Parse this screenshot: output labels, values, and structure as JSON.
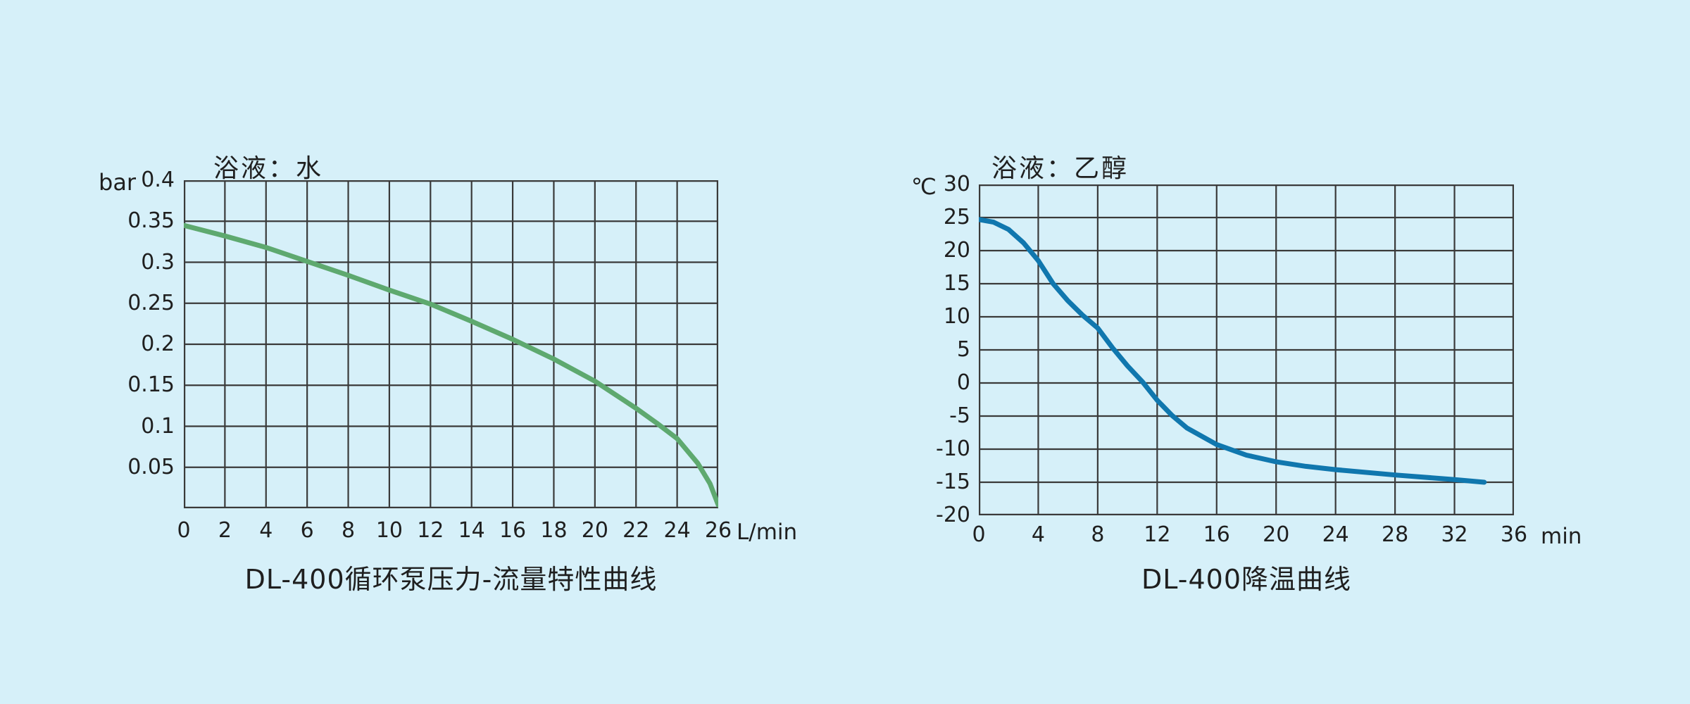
{
  "colors": {
    "background": "#d6f0f9",
    "grid": "#3a3a3a",
    "text": "#1f1f1f"
  },
  "chart_data": [
    {
      "type": "line",
      "bath_label": "浴液：水",
      "title": "DL-400循环泵压力-流量特性曲线",
      "y_unit": "bar",
      "x_unit": "L/min",
      "x_ticks": [
        "0",
        "2",
        "4",
        "6",
        "8",
        "10",
        "12",
        "14",
        "16",
        "18",
        "20",
        "22",
        "24",
        "26"
      ],
      "y_ticks": [
        "0.4",
        "0.35",
        "0.3",
        "0.25",
        "0.2",
        "0.15",
        "0.1",
        "0.05"
      ],
      "x_range": [
        0,
        26
      ],
      "y_range": [
        0,
        0.4
      ],
      "grid": {
        "cols": 13,
        "rows": 8,
        "x_step": 2,
        "y_step": 0.05
      },
      "legend": "none",
      "line_color": "#5ea96f",
      "points": [
        [
          0,
          0.345
        ],
        [
          2,
          0.332
        ],
        [
          4,
          0.318
        ],
        [
          6,
          0.301
        ],
        [
          8,
          0.284
        ],
        [
          10,
          0.266
        ],
        [
          12,
          0.249
        ],
        [
          14,
          0.228
        ],
        [
          16,
          0.206
        ],
        [
          18,
          0.182
        ],
        [
          20,
          0.155
        ],
        [
          22,
          0.122
        ],
        [
          23,
          0.104
        ],
        [
          24,
          0.085
        ],
        [
          25,
          0.055
        ],
        [
          25.6,
          0.03
        ],
        [
          26,
          0.004
        ]
      ]
    },
    {
      "type": "line",
      "bath_label": "浴液：乙醇",
      "title": "DL-400降温曲线",
      "y_unit": "℃",
      "x_unit": "min",
      "x_ticks": [
        "0",
        "4",
        "8",
        "12",
        "16",
        "20",
        "24",
        "28",
        "32",
        "36"
      ],
      "y_ticks": [
        "30",
        "25",
        "20",
        "15",
        "10",
        "5",
        "0",
        "-5",
        "-10",
        "-15",
        "-20"
      ],
      "x_range": [
        0,
        36
      ],
      "y_range": [
        -20,
        30
      ],
      "grid": {
        "cols": 9,
        "rows": 10,
        "x_step": 4,
        "y_step": 5
      },
      "legend": "none",
      "line_color": "#1077ae",
      "points": [
        [
          0,
          24.7
        ],
        [
          1,
          24.3
        ],
        [
          2,
          23.2
        ],
        [
          3,
          21.2
        ],
        [
          4,
          18.5
        ],
        [
          5,
          15.0
        ],
        [
          6,
          12.4
        ],
        [
          7,
          10.2
        ],
        [
          8,
          8.3
        ],
        [
          9,
          5.3
        ],
        [
          10,
          2.6
        ],
        [
          11,
          0.2
        ],
        [
          12,
          -2.6
        ],
        [
          13,
          -4.9
        ],
        [
          14,
          -6.8
        ],
        [
          16,
          -9.3
        ],
        [
          18,
          -10.9
        ],
        [
          20,
          -11.9
        ],
        [
          22,
          -12.6
        ],
        [
          24,
          -13.1
        ],
        [
          28,
          -13.9
        ],
        [
          32,
          -14.6
        ],
        [
          34,
          -15.0
        ]
      ]
    }
  ]
}
